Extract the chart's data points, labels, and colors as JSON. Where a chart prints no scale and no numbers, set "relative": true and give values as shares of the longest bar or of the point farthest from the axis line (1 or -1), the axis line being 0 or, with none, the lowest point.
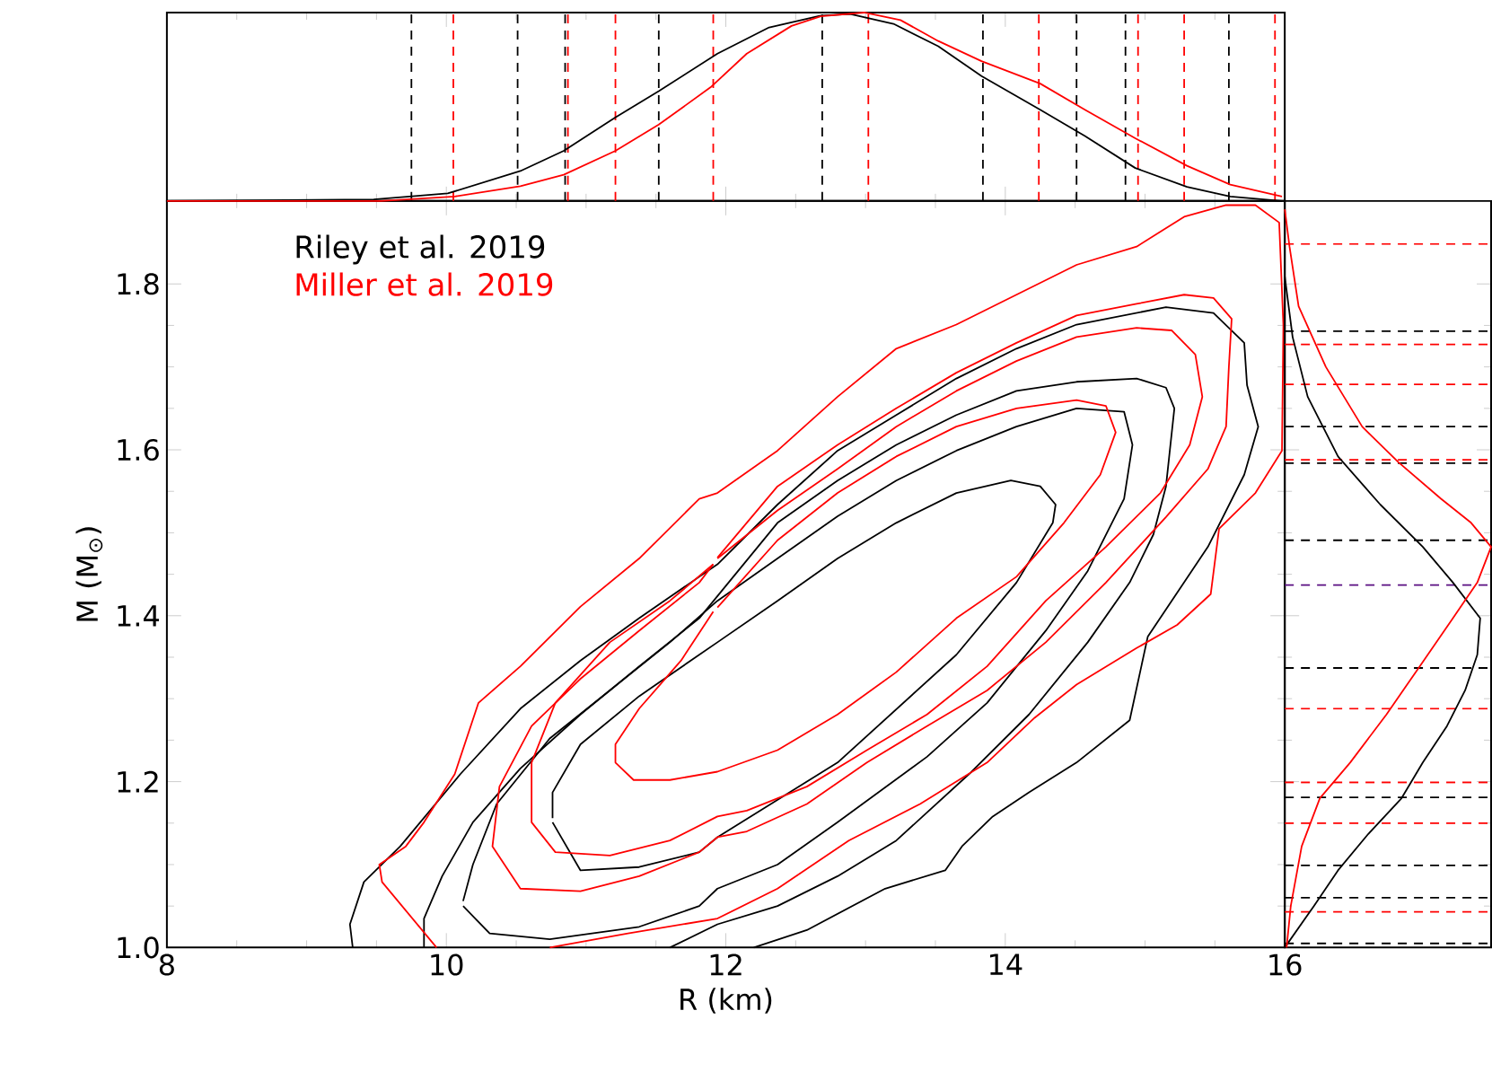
{
  "chart_data": [
    {
      "type": "line",
      "xlabel": "R (km)",
      "ylabel": "M (M$_{⊙}$)",
      "xlim": [
        8,
        16
      ],
      "ylim": [
        1.0,
        1.9
      ],
      "xticks": [
        8,
        10,
        12,
        14,
        16
      ],
      "yticks": [
        {
          "value": 1.0,
          "label": "1.0"
        },
        {
          "value": 1.2,
          "label": "1.2"
        },
        {
          "value": 1.4,
          "label": "1.4"
        },
        {
          "value": 1.6,
          "label": "1.6"
        },
        {
          "value": 1.8,
          "label": "1.8"
        }
      ],
      "legend": "top left",
      "marker": "none",
      "line_style": "solid",
      "series": [
        {
          "name": "Riley et al. 2019",
          "color": "#000000",
          "x": [
            9.33,
            9.31,
            9.41,
            9.67,
            10.1,
            10.53,
            10.96,
            11.38,
            11.81,
            11.94,
            12.37,
            12.8,
            13.22,
            13.65,
            14.08,
            14.51,
            15.15,
            15.49,
            15.71,
            15.73,
            15.81,
            15.71,
            15.45,
            15.02,
            14.89,
            14.51,
            14.17,
            13.91,
            13.69,
            13.57,
            13.14,
            12.58,
            12.2
          ],
          "values": [
            1.0,
            1.028,
            1.079,
            1.122,
            1.209,
            1.288,
            1.346,
            1.397,
            1.447,
            1.462,
            1.534,
            1.599,
            1.642,
            1.686,
            1.722,
            1.751,
            1.772,
            1.765,
            1.729,
            1.678,
            1.628,
            1.57,
            1.483,
            1.375,
            1.274,
            1.223,
            1.187,
            1.158,
            1.122,
            1.093,
            1.071,
            1.021,
            1.0
          ]
        },
        {
          "color": "#000000",
          "x": [
            9.84,
            9.84,
            9.97,
            10.19,
            10.53,
            10.96,
            11.38,
            11.81,
            12.37,
            12.8,
            13.22,
            13.65,
            14.08,
            14.51,
            14.94,
            15.15,
            15.21,
            15.15,
            15.06,
            14.89,
            14.59,
            14.17,
            13.74,
            13.22,
            12.8,
            12.37,
            11.94,
            11.6
          ],
          "values": [
            1.0,
            1.035,
            1.086,
            1.151,
            1.216,
            1.281,
            1.339,
            1.397,
            1.512,
            1.563,
            1.606,
            1.642,
            1.671,
            1.682,
            1.686,
            1.675,
            1.65,
            1.556,
            1.498,
            1.44,
            1.368,
            1.281,
            1.209,
            1.129,
            1.086,
            1.05,
            1.028,
            1.0
          ]
        },
        {
          "color": "#000000",
          "x": [
            10.12,
            10.31,
            10.74,
            11.38,
            11.81,
            11.94,
            12.37,
            12.8,
            13.44,
            13.87,
            14.29,
            14.59,
            14.85,
            14.91,
            14.85,
            14.51,
            14.08,
            13.65,
            13.22,
            12.8,
            12.37,
            11.94,
            11.6,
            11.17,
            10.74,
            10.36,
            10.19,
            10.12
          ],
          "values": [
            1.05,
            1.017,
            1.01,
            1.025,
            1.05,
            1.071,
            1.1,
            1.151,
            1.23,
            1.295,
            1.382,
            1.454,
            1.541,
            1.606,
            1.646,
            1.65,
            1.628,
            1.599,
            1.563,
            1.52,
            1.469,
            1.418,
            1.368,
            1.31,
            1.252,
            1.173,
            1.1,
            1.056
          ]
        },
        {
          "color": "#000000",
          "x": [
            10.76,
            10.96,
            11.38,
            11.81,
            11.94,
            12.8,
            13.65,
            14.08,
            14.34,
            14.36,
            14.25,
            14.04,
            13.65,
            13.22,
            12.8,
            12.37,
            11.94,
            11.81,
            11.38,
            10.96,
            10.76,
            10.76
          ],
          "values": [
            1.151,
            1.093,
            1.097,
            1.115,
            1.133,
            1.223,
            1.353,
            1.44,
            1.512,
            1.534,
            1.556,
            1.563,
            1.548,
            1.512,
            1.469,
            1.418,
            1.368,
            1.353,
            1.303,
            1.245,
            1.187,
            1.156
          ]
        },
        {
          "name": "Miller et al. 2019",
          "color": "#ff0000",
          "x": [
            9.93,
            9.54,
            9.52,
            9.71,
            9.84,
            10.06,
            10.23,
            10.53,
            10.96,
            11.38,
            11.81,
            11.94,
            12.37,
            12.8,
            13.22,
            13.65,
            14.08,
            14.51,
            14.94,
            15.28,
            15.58,
            15.79,
            15.96,
            15.99,
            15.98,
            15.79,
            15.53,
            15.47,
            15.23,
            14.94,
            14.51,
            14.21,
            13.87,
            13.39,
            12.88,
            12.37,
            11.94,
            11.3,
            10.74
          ],
          "values": [
            1.0,
            1.079,
            1.1,
            1.122,
            1.151,
            1.209,
            1.295,
            1.339,
            1.411,
            1.469,
            1.541,
            1.548,
            1.599,
            1.664,
            1.722,
            1.751,
            1.787,
            1.823,
            1.845,
            1.881,
            1.895,
            1.895,
            1.874,
            1.75,
            1.599,
            1.548,
            1.505,
            1.426,
            1.389,
            1.361,
            1.317,
            1.277,
            1.223,
            1.173,
            1.129,
            1.071,
            1.035,
            1.017,
            1.0
          ]
        },
        {
          "color": "#ff0000",
          "x": [
            11.94,
            12.37,
            12.8,
            13.22,
            13.65,
            14.08,
            14.51,
            14.94,
            15.28,
            15.49,
            15.62,
            15.6,
            15.58,
            15.45,
            15.15,
            14.72,
            14.29,
            13.87,
            13.44,
            13.01,
            12.58,
            12.15,
            11.94,
            11.81,
            11.38,
            10.96,
            10.53,
            10.33,
            10.38,
            10.61,
            10.96,
            11.38,
            11.81,
            11.91
          ],
          "values": [
            1.47,
            1.556,
            1.606,
            1.65,
            1.693,
            1.729,
            1.762,
            1.776,
            1.787,
            1.783,
            1.758,
            1.7,
            1.628,
            1.577,
            1.519,
            1.44,
            1.368,
            1.31,
            1.267,
            1.223,
            1.173,
            1.14,
            1.133,
            1.115,
            1.086,
            1.068,
            1.071,
            1.122,
            1.194,
            1.267,
            1.324,
            1.382,
            1.44,
            1.462
          ]
        },
        {
          "color": "#ff0000",
          "x": [
            11.94,
            12.37,
            12.8,
            13.22,
            13.65,
            14.08,
            14.51,
            14.94,
            15.19,
            15.36,
            15.41,
            15.32,
            15.11,
            14.72,
            14.29,
            13.87,
            13.44,
            13.01,
            12.58,
            12.15,
            11.94,
            11.6,
            11.17,
            10.78,
            10.61,
            10.61,
            10.78,
            11.17,
            11.6,
            11.91
          ],
          "values": [
            1.469,
            1.527,
            1.577,
            1.628,
            1.671,
            1.707,
            1.736,
            1.747,
            1.744,
            1.715,
            1.664,
            1.606,
            1.548,
            1.483,
            1.418,
            1.339,
            1.281,
            1.238,
            1.194,
            1.165,
            1.158,
            1.129,
            1.111,
            1.115,
            1.151,
            1.223,
            1.295,
            1.368,
            1.418,
            1.462
          ]
        },
        {
          "color": "#ff0000",
          "x": [
            11.94,
            12.37,
            12.8,
            13.22,
            13.65,
            14.08,
            14.51,
            14.72,
            14.79,
            14.68,
            14.42,
            14.08,
            13.65,
            13.22,
            12.8,
            12.37,
            11.94,
            11.6,
            11.34,
            11.21,
            11.21,
            11.38,
            11.68,
            11.91
          ],
          "values": [
            1.41,
            1.491,
            1.548,
            1.592,
            1.628,
            1.65,
            1.66,
            1.653,
            1.621,
            1.57,
            1.512,
            1.447,
            1.397,
            1.332,
            1.281,
            1.238,
            1.212,
            1.202,
            1.202,
            1.223,
            1.245,
            1.288,
            1.346,
            1.405
          ]
        }
      ]
    },
    {
      "type": "line",
      "relative": true,
      "xlim": [
        8,
        16
      ],
      "xticks": [
        8,
        10,
        12,
        14,
        16
      ],
      "tick_labels": false,
      "marker": "none",
      "line_style": "solid",
      "series": [
        {
          "color": "#000000",
          "x": [
            8.0,
            9.48,
            10.01,
            10.53,
            10.84,
            11.21,
            11.52,
            11.94,
            12.31,
            12.68,
            12.89,
            13.2,
            13.52,
            13.83,
            14.25,
            14.57,
            14.93,
            15.3,
            15.61,
            15.98
          ],
          "values": [
            0,
            0.008,
            0.04,
            0.159,
            0.266,
            0.444,
            0.583,
            0.782,
            0.921,
            0.984,
            0.992,
            0.94,
            0.821,
            0.663,
            0.484,
            0.345,
            0.175,
            0.075,
            0.024,
            0
          ]
        },
        {
          "color": "#ff0000",
          "x": [
            8.0,
            9.53,
            10.06,
            10.53,
            10.84,
            11.21,
            11.52,
            11.89,
            12.15,
            12.47,
            12.68,
            12.99,
            13.25,
            13.52,
            13.83,
            14.25,
            14.57,
            14.93,
            15.3,
            15.61,
            15.98
          ],
          "values": [
            0,
            0,
            0.024,
            0.079,
            0.139,
            0.266,
            0.405,
            0.603,
            0.782,
            0.929,
            0.98,
            1.0,
            0.96,
            0.849,
            0.742,
            0.623,
            0.484,
            0.333,
            0.187,
            0.087,
            0.024
          ]
        }
      ],
      "ref_lines": [
        {
          "axis": "x",
          "value": 9.75,
          "color": "#000000",
          "line_style": "dashed"
        },
        {
          "axis": "x",
          "value": 10.51,
          "color": "#000000",
          "line_style": "dashed"
        },
        {
          "axis": "x",
          "value": 10.85,
          "color": "#000000",
          "line_style": "dashed"
        },
        {
          "axis": "x",
          "value": 11.52,
          "color": "#000000",
          "line_style": "dashed"
        },
        {
          "axis": "x",
          "value": 12.69,
          "color": "#000000",
          "line_style": "dashed"
        },
        {
          "axis": "x",
          "value": 13.84,
          "color": "#000000",
          "line_style": "dashed"
        },
        {
          "axis": "x",
          "value": 14.51,
          "color": "#000000",
          "line_style": "dashed"
        },
        {
          "axis": "x",
          "value": 14.86,
          "color": "#000000",
          "line_style": "dashed"
        },
        {
          "axis": "x",
          "value": 15.6,
          "color": "#000000",
          "line_style": "dashed"
        },
        {
          "axis": "x",
          "value": 10.05,
          "color": "#ff0000",
          "line_style": "dashed"
        },
        {
          "axis": "x",
          "value": 10.87,
          "color": "#ff0000",
          "line_style": "dashed"
        },
        {
          "axis": "x",
          "value": 11.21,
          "color": "#ff0000",
          "line_style": "dashed"
        },
        {
          "axis": "x",
          "value": 11.91,
          "color": "#ff0000",
          "line_style": "dashed"
        },
        {
          "axis": "x",
          "value": 13.02,
          "color": "#ff0000",
          "line_style": "dashed"
        },
        {
          "axis": "x",
          "value": 14.24,
          "color": "#ff0000",
          "line_style": "dashed"
        },
        {
          "axis": "x",
          "value": 14.95,
          "color": "#ff0000",
          "line_style": "dashed"
        },
        {
          "axis": "x",
          "value": 15.28,
          "color": "#ff0000",
          "line_style": "dashed"
        },
        {
          "axis": "x",
          "value": 15.93,
          "color": "#ff0000",
          "line_style": "dashed"
        }
      ]
    },
    {
      "type": "line",
      "relative": true,
      "orientation": "horizontal",
      "ylim": [
        1.0,
        1.9
      ],
      "yticks": [
        1.0,
        1.2,
        1.4,
        1.6,
        1.8
      ],
      "tick_labels": false,
      "marker": "none",
      "line_style": "solid",
      "series": [
        {
          "color": "#000000",
          "x": [
            1.809,
            1.736,
            1.664,
            1.592,
            1.534,
            1.483,
            1.44,
            1.397,
            1.353,
            1.31,
            1.267,
            1.223,
            1.18,
            1.137,
            1.093,
            1.05,
            1.0
          ],
          "values": [
            0,
            0.038,
            0.111,
            0.258,
            0.463,
            0.669,
            0.815,
            0.947,
            0.933,
            0.874,
            0.786,
            0.669,
            0.566,
            0.405,
            0.258,
            0.141,
            0
          ]
        },
        {
          "color": "#ff0000",
          "x": [
            1.89,
            1.845,
            1.773,
            1.7,
            1.628,
            1.585,
            1.541,
            1.512,
            1.483,
            1.44,
            1.397,
            1.339,
            1.281,
            1.223,
            1.18,
            1.122,
            1.05,
            1.0
          ],
          "values": [
            0,
            0.023,
            0.067,
            0.199,
            0.375,
            0.551,
            0.757,
            0.903,
            1.0,
            0.933,
            0.815,
            0.654,
            0.493,
            0.317,
            0.17,
            0.082,
            0.029,
            0.009
          ]
        }
      ],
      "ref_lines": [
        {
          "axis": "y",
          "value": 1.743,
          "color": "#000000",
          "line_style": "dashed"
        },
        {
          "axis": "y",
          "value": 1.628,
          "color": "#000000",
          "line_style": "dashed"
        },
        {
          "axis": "y",
          "value": 1.584,
          "color": "#000000",
          "line_style": "dashed"
        },
        {
          "axis": "y",
          "value": 1.491,
          "color": "#000000",
          "line_style": "dashed"
        },
        {
          "axis": "y",
          "value": 1.337,
          "color": "#000000",
          "line_style": "dashed"
        },
        {
          "axis": "y",
          "value": 1.181,
          "color": "#000000",
          "line_style": "dashed"
        },
        {
          "axis": "y",
          "value": 1.099,
          "color": "#000000",
          "line_style": "dashed"
        },
        {
          "axis": "y",
          "value": 1.06,
          "color": "#000000",
          "line_style": "dashed"
        },
        {
          "axis": "y",
          "value": 1.005,
          "color": "#000000",
          "line_style": "dashed"
        },
        {
          "axis": "y",
          "value": 1.437,
          "color": "#5a0f82",
          "line_style": "dashed"
        },
        {
          "axis": "y",
          "value": 1.848,
          "color": "#ff0000",
          "line_style": "dashed"
        },
        {
          "axis": "y",
          "value": 1.727,
          "color": "#ff0000",
          "line_style": "dashed"
        },
        {
          "axis": "y",
          "value": 1.679,
          "color": "#ff0000",
          "line_style": "dashed"
        },
        {
          "axis": "y",
          "value": 1.588,
          "color": "#ff0000",
          "line_style": "dashed"
        },
        {
          "axis": "y",
          "value": 1.288,
          "color": "#ff0000",
          "line_style": "dashed"
        },
        {
          "axis": "y",
          "value": 1.199,
          "color": "#ff0000",
          "line_style": "dashed"
        },
        {
          "axis": "y",
          "value": 1.15,
          "color": "#ff0000",
          "line_style": "dashed"
        },
        {
          "axis": "y",
          "value": 1.043,
          "color": "#ff0000",
          "line_style": "dashed"
        }
      ]
    }
  ]
}
